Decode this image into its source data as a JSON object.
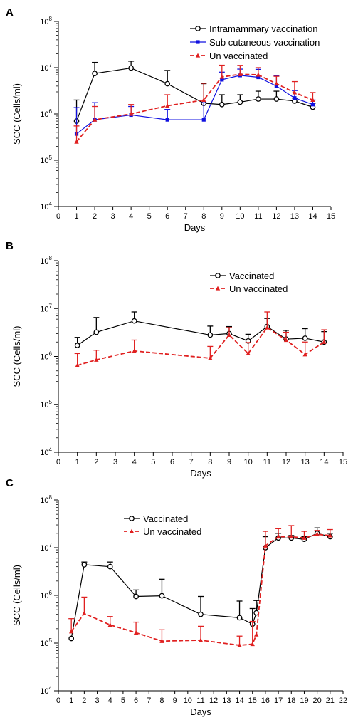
{
  "chart_data": [
    {
      "panel": "A",
      "type": "line",
      "xlabel": "Days",
      "ylabel": "SCC (Cells/ml)",
      "xlim": [
        0,
        15
      ],
      "ylim": [
        10000,
        100000000
      ],
      "yscale": "log",
      "x_ticks": [
        "0",
        "1",
        "2",
        "3",
        "4",
        "5",
        "6",
        "7",
        "8",
        "9",
        "10",
        "11",
        "12",
        "13",
        "14",
        "15"
      ],
      "y_tick_base": "10",
      "y_tick_exponents": [
        "4",
        "5",
        "6",
        "7",
        "8"
      ],
      "legend_position": "top-right",
      "series": [
        {
          "name": "Intramammary vaccination",
          "color": "#000000",
          "marker": "circle",
          "dash": "solid",
          "x": [
            1,
            2,
            4,
            6,
            8,
            9,
            10,
            11,
            12,
            13,
            14
          ],
          "y": [
            700000,
            7500000,
            9800000,
            4500000,
            1700000,
            1600000,
            1800000,
            2100000,
            2100000,
            1900000,
            1400000
          ],
          "err": [
            1300000,
            5500000,
            4000000,
            4200000,
            2800000,
            1000000,
            800000,
            1000000,
            1000000,
            300000,
            300000
          ]
        },
        {
          "name": "Sub cutaneous vaccination",
          "color": "#1010e0",
          "marker": "square",
          "dash": "solid",
          "x": [
            1,
            2,
            4,
            6,
            8,
            9,
            10,
            11,
            12,
            13,
            14
          ],
          "y": [
            370000,
            750000,
            950000,
            750000,
            750000,
            5500000,
            6800000,
            6200000,
            4000000,
            2200000,
            1600000
          ],
          "err": [
            1000000,
            1000000,
            500000,
            500000,
            1000000,
            2500000,
            2500000,
            3000000,
            2800000,
            1000000,
            400000
          ]
        },
        {
          "name": "Un vaccinated",
          "color": "#e02020",
          "marker": "triangle",
          "dash": "dashed",
          "x": [
            1,
            2,
            4,
            6,
            8,
            9,
            10,
            11,
            12,
            13,
            14
          ],
          "y": [
            250000,
            750000,
            1000000,
            1500000,
            2000000,
            6300000,
            7200000,
            7000000,
            4500000,
            2900000,
            2000000
          ],
          "err": [
            300000,
            700000,
            600000,
            1100000,
            2600000,
            5000000,
            4000000,
            3000000,
            2000000,
            2100000,
            900000
          ]
        }
      ]
    },
    {
      "panel": "B",
      "type": "line",
      "xlabel": "Days",
      "ylabel": "SCC (Cells/ml)",
      "xlim": [
        0,
        15
      ],
      "ylim": [
        10000,
        100000000
      ],
      "yscale": "log",
      "x_ticks": [
        "0",
        "1",
        "2",
        "3",
        "4",
        "5",
        "6",
        "7",
        "8",
        "9",
        "10",
        "11",
        "12",
        "13",
        "14",
        "15"
      ],
      "y_tick_base": "10",
      "y_tick_exponents": [
        "4",
        "5",
        "6",
        "7",
        "8"
      ],
      "legend_position": "top-right",
      "series": [
        {
          "name": "Vaccinated",
          "color": "#000000",
          "marker": "circle",
          "dash": "solid",
          "x": [
            1,
            2,
            4,
            8,
            9,
            10,
            11,
            12,
            13,
            14
          ],
          "y": [
            1700000,
            3200000,
            5500000,
            2800000,
            3000000,
            2100000,
            4200000,
            2300000,
            2400000,
            2000000
          ],
          "err": [
            800000,
            3300000,
            3000000,
            1500000,
            1200000,
            800000,
            2000000,
            1200000,
            1400000,
            1300000
          ]
        },
        {
          "name": "Un vaccinated",
          "color": "#e02020",
          "marker": "triangle",
          "dash": "dashed",
          "x": [
            1,
            2,
            4,
            8,
            9,
            10,
            11,
            12,
            13,
            14
          ],
          "y": [
            650000,
            850000,
            1300000,
            920000,
            2800000,
            1150000,
            4000000,
            2200000,
            1100000,
            2000000
          ],
          "err": [
            500000,
            500000,
            900000,
            700000,
            1200000,
            800000,
            4500000,
            1000000,
            900000,
            1600000
          ]
        }
      ]
    },
    {
      "panel": "C",
      "type": "line",
      "xlabel": "Days",
      "ylabel": "SCC (Cells/ml)",
      "xlim": [
        0,
        22
      ],
      "ylim": [
        10000,
        100000000
      ],
      "yscale": "log",
      "x_ticks": [
        "0",
        "1",
        "2",
        "3",
        "4",
        "5",
        "6",
        "7",
        "8",
        "9",
        "10",
        "11",
        "12",
        "13",
        "14",
        "15",
        "16",
        "17",
        "18",
        "19",
        "20",
        "21",
        "22"
      ],
      "y_tick_base": "10",
      "y_tick_exponents": [
        "4",
        "5",
        "6",
        "7",
        "8"
      ],
      "legend_position": "top-left",
      "series": [
        {
          "name": "Vaccinated",
          "color": "#000000",
          "marker": "circle",
          "dash": "solid",
          "x": [
            1,
            2,
            4,
            6,
            8,
            11,
            14,
            15,
            15.3,
            16,
            17,
            18,
            19,
            20,
            21
          ],
          "y": [
            125000,
            4400000,
            4000000,
            950000,
            980000,
            400000,
            340000,
            250000,
            430000,
            10000000,
            16000000,
            16000000,
            15000000,
            20000000,
            17000000
          ],
          "err": [
            0,
            600000,
            1000000,
            350000,
            1200000,
            550000,
            420000,
            280000,
            350000,
            7000000,
            4000000,
            2000000,
            2000000,
            6000000,
            3000000
          ]
        },
        {
          "name": "Un vaccinated",
          "color": "#e02020",
          "marker": "triangle",
          "dash": "dashed",
          "x": [
            1,
            2,
            4,
            6,
            8,
            11,
            14,
            15,
            15.3,
            16,
            17,
            18,
            19,
            20,
            21
          ],
          "y": [
            175000,
            420000,
            240000,
            165000,
            110000,
            115000,
            90000,
            95000,
            150000,
            11000000,
            17000000,
            17000000,
            16000000,
            19000000,
            18000000
          ],
          "err": [
            150000,
            500000,
            120000,
            110000,
            80000,
            110000,
            50000,
            190000,
            0,
            11000000,
            8000000,
            12000000,
            6000000,
            4000000,
            6000000
          ]
        }
      ]
    }
  ]
}
